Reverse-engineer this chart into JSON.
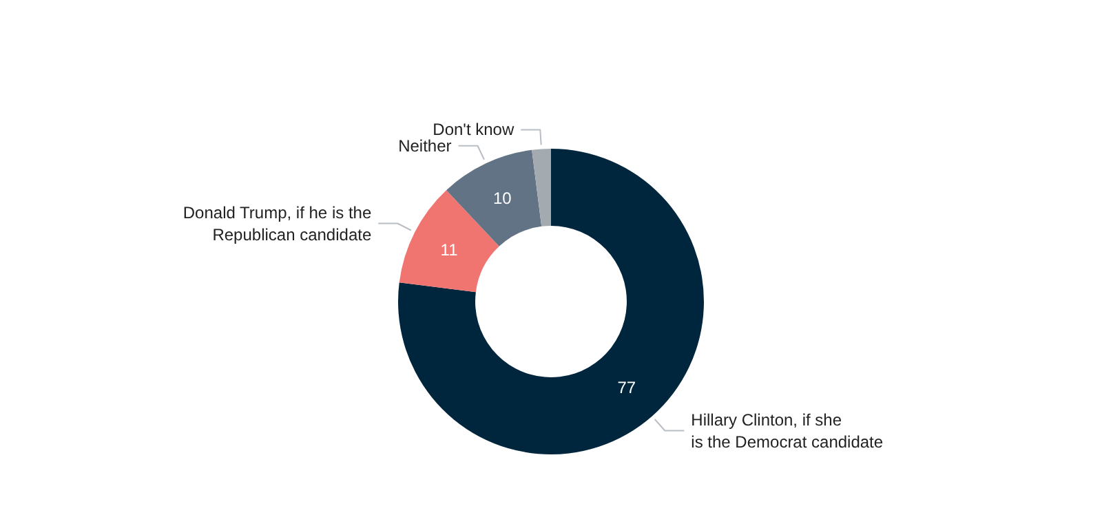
{
  "chart_data": {
    "type": "donut",
    "categories": [
      "Hillary Clinton, if she\nis the Democrat candidate",
      "Donald Trump, if he is the\nRepublican candidate",
      "Neither",
      "Don't know"
    ],
    "values": [
      77,
      11,
      10,
      2
    ],
    "colors": [
      "#00263e",
      "#f07470",
      "#627386",
      "#a3aab0"
    ],
    "value_labels": [
      "77",
      "11",
      "10",
      null
    ]
  }
}
